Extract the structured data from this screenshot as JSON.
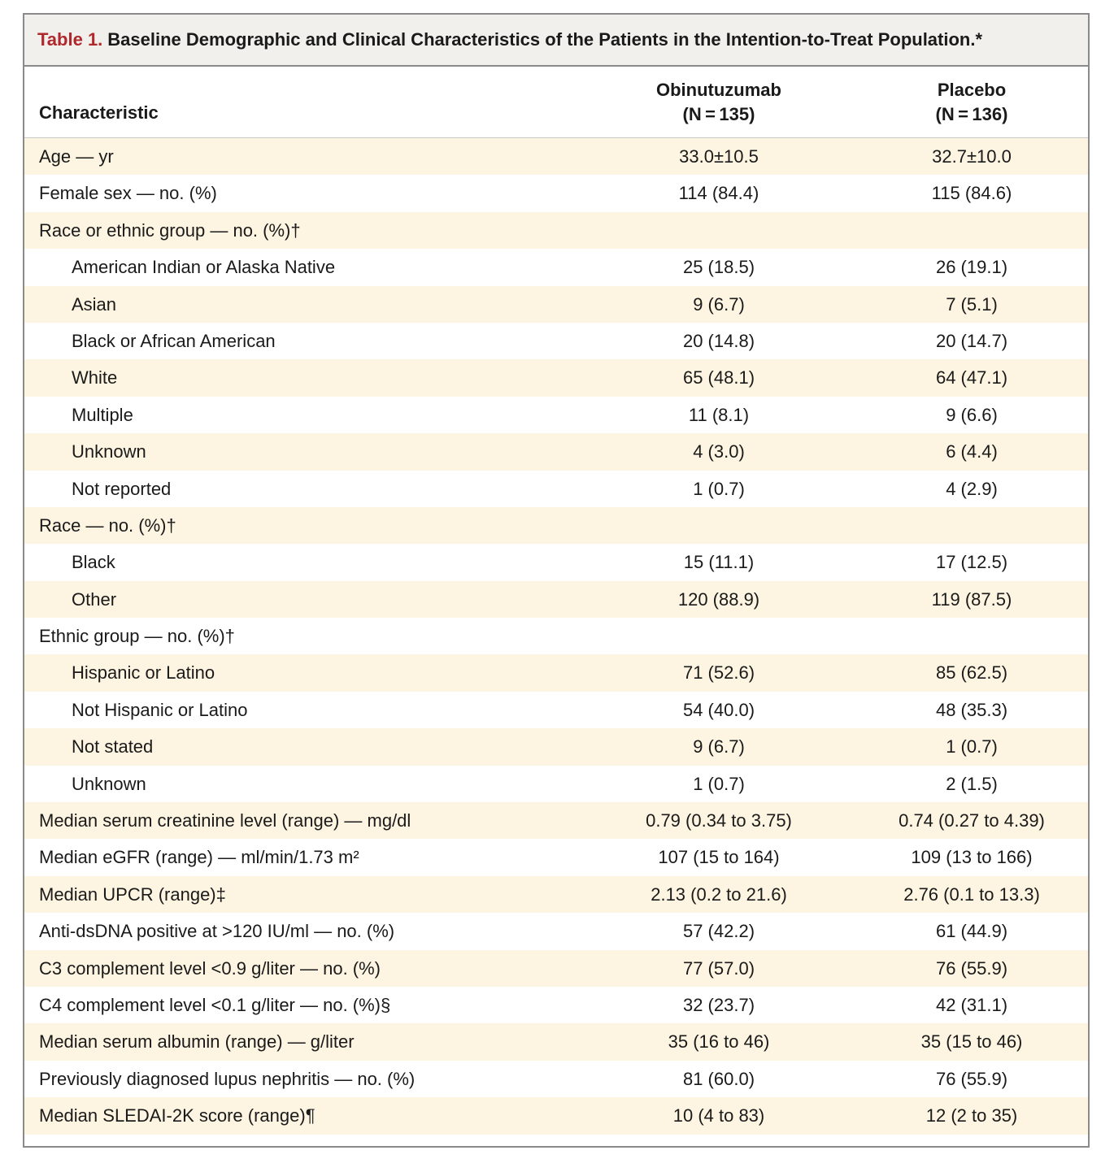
{
  "table": {
    "label": "Table 1.",
    "title": "Baseline Demographic and Clinical Characteristics of the Patients in the Intention-to-Treat Population.*",
    "columns": {
      "characteristic": "Characteristic",
      "group1_name": "Obinutuzumab",
      "group1_n": "(N = 135)",
      "group2_name": "Placebo",
      "group2_n": "(N = 136)"
    },
    "rows": [
      {
        "label": "Age — yr",
        "v1": "33.0±10.5",
        "v2": "32.7±10.0",
        "indent": false
      },
      {
        "label": "Female sex — no. (%)",
        "v1": "114 (84.4)",
        "v2": "115 (84.6)",
        "indent": false
      },
      {
        "label": "Race or ethnic group — no. (%)†",
        "v1": "",
        "v2": "",
        "indent": false
      },
      {
        "label": "American Indian or Alaska Native",
        "v1": "25 (18.5)",
        "v2": "26 (19.1)",
        "indent": true
      },
      {
        "label": "Asian",
        "v1": "9 (6.7)",
        "v2": "7 (5.1)",
        "indent": true
      },
      {
        "label": "Black or African American",
        "v1": "20 (14.8)",
        "v2": "20 (14.7)",
        "indent": true
      },
      {
        "label": "White",
        "v1": "65 (48.1)",
        "v2": "64 (47.1)",
        "indent": true
      },
      {
        "label": "Multiple",
        "v1": "11 (8.1)",
        "v2": "9 (6.6)",
        "indent": true
      },
      {
        "label": "Unknown",
        "v1": "4 (3.0)",
        "v2": "6 (4.4)",
        "indent": true
      },
      {
        "label": "Not reported",
        "v1": "1 (0.7)",
        "v2": "4 (2.9)",
        "indent": true
      },
      {
        "label": "Race — no. (%)†",
        "v1": "",
        "v2": "",
        "indent": false
      },
      {
        "label": "Black",
        "v1": "15 (11.1)",
        "v2": "17 (12.5)",
        "indent": true
      },
      {
        "label": "Other",
        "v1": "120 (88.9)",
        "v2": "119 (87.5)",
        "indent": true
      },
      {
        "label": "Ethnic group — no. (%)†",
        "v1": "",
        "v2": "",
        "indent": false
      },
      {
        "label": "Hispanic or Latino",
        "v1": "71 (52.6)",
        "v2": "85 (62.5)",
        "indent": true
      },
      {
        "label": "Not Hispanic or Latino",
        "v1": "54 (40.0)",
        "v2": "48 (35.3)",
        "indent": true
      },
      {
        "label": "Not stated",
        "v1": "9 (6.7)",
        "v2": "1 (0.7)",
        "indent": true
      },
      {
        "label": "Unknown",
        "v1": "1 (0.7)",
        "v2": "2 (1.5)",
        "indent": true
      },
      {
        "label": "Median serum creatinine level (range) — mg/dl",
        "v1": "0.79 (0.34 to 3.75)",
        "v2": "0.74 (0.27 to 4.39)",
        "indent": false
      },
      {
        "label": "Median eGFR (range) — ml/min/1.73 m²",
        "v1": "107 (15 to 164)",
        "v2": "109 (13 to 166)",
        "indent": false
      },
      {
        "label": "Median UPCR (range)‡",
        "v1": "2.13 (0.2 to 21.6)",
        "v2": "2.76 (0.1 to 13.3)",
        "indent": false
      },
      {
        "label": "Anti-dsDNA positive at >120 IU/ml — no. (%)",
        "v1": "57 (42.2)",
        "v2": "61 (44.9)",
        "indent": false
      },
      {
        "label": "C3 complement level <0.9 g/liter — no. (%)",
        "v1": "77 (57.0)",
        "v2": "76 (55.9)",
        "indent": false
      },
      {
        "label": "C4 complement level <0.1 g/liter — no. (%)§",
        "v1": "32 (23.7)",
        "v2": "42 (31.1)",
        "indent": false
      },
      {
        "label": "Median serum albumin (range) — g/liter",
        "v1": "35 (16 to 46)",
        "v2": "35 (15 to 46)",
        "indent": false
      },
      {
        "label": "Previously diagnosed lupus nephritis — no. (%)",
        "v1": "81 (60.0)",
        "v2": "76 (55.9)",
        "indent": false
      },
      {
        "label": "Median SLEDAI-2K score (range)¶",
        "v1": "10 (4 to 83)",
        "v2": "12 (2 to 35)",
        "indent": false
      }
    ]
  }
}
